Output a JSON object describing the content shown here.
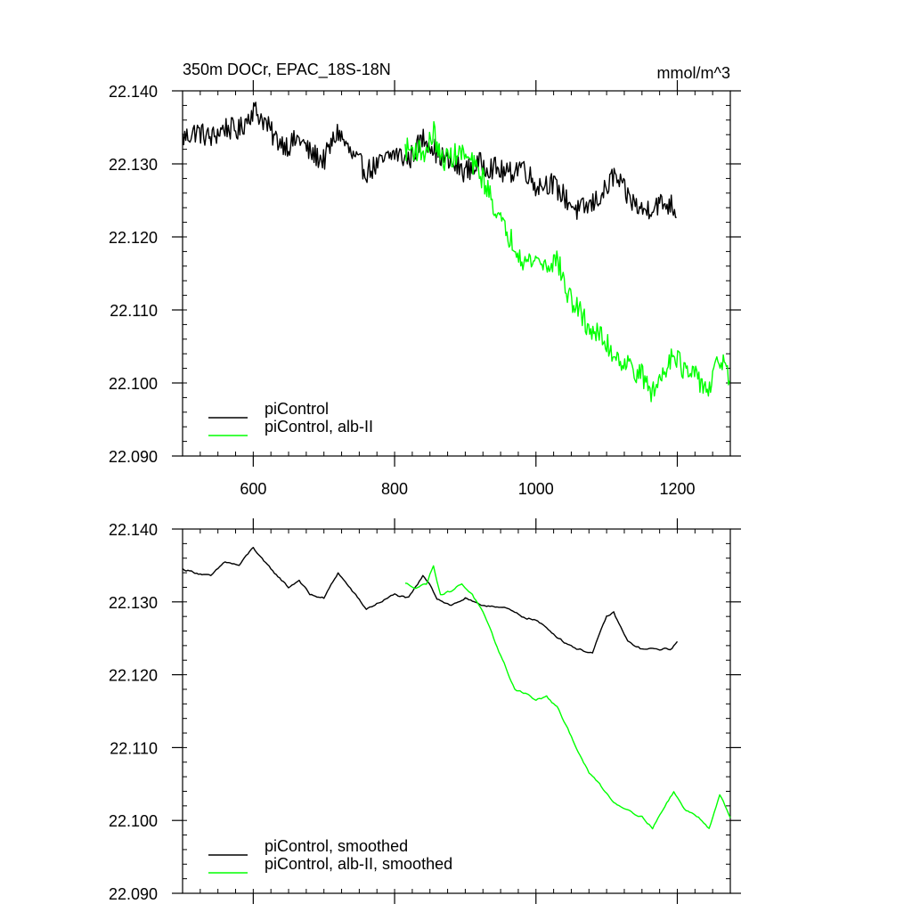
{
  "chart_data": [
    {
      "type": "line",
      "title": "350m DOCr, EPAC_18S-18N",
      "units": "mmol/m^3",
      "xlim": [
        500,
        1275
      ],
      "ylim": [
        22.09,
        22.14
      ],
      "xticks": [
        600,
        800,
        1000,
        1200
      ],
      "yticks": [
        22.09,
        22.1,
        22.11,
        22.12,
        22.13,
        22.14
      ],
      "xtick_labels": [
        "600",
        "800",
        "1000",
        "1200"
      ],
      "ytick_labels": [
        "22.090",
        "22.100",
        "22.110",
        "22.120",
        "22.130",
        "22.140"
      ],
      "legend_position": "bottom-left",
      "smoothed": false,
      "series": [
        {
          "name": "piControl",
          "color": "#000000",
          "points": [
            [
              500,
              22.1335
            ],
            [
              520,
              22.1345
            ],
            [
              540,
              22.1335
            ],
            [
              560,
              22.135
            ],
            [
              580,
              22.1345
            ],
            [
              600,
              22.1375
            ],
            [
              615,
              22.136
            ],
            [
              630,
              22.1335
            ],
            [
              650,
              22.1325
            ],
            [
              665,
              22.1335
            ],
            [
              680,
              22.1315
            ],
            [
              700,
              22.1305
            ],
            [
              720,
              22.1345
            ],
            [
              740,
              22.131
            ],
            [
              760,
              22.129
            ],
            [
              780,
              22.13
            ],
            [
              800,
              22.1315
            ],
            [
              820,
              22.1305
            ],
            [
              840,
              22.1335
            ],
            [
              850,
              22.133
            ],
            [
              860,
              22.1315
            ],
            [
              880,
              22.13
            ],
            [
              900,
              22.129
            ],
            [
              920,
              22.13
            ],
            [
              940,
              22.1295
            ],
            [
              960,
              22.1285
            ],
            [
              980,
              22.13
            ],
            [
              1000,
              22.127
            ],
            [
              1020,
              22.1275
            ],
            [
              1040,
              22.1255
            ],
            [
              1060,
              22.1235
            ],
            [
              1080,
              22.1245
            ],
            [
              1100,
              22.1265
            ],
            [
              1110,
              22.1285
            ],
            [
              1130,
              22.1255
            ],
            [
              1150,
              22.1235
            ],
            [
              1170,
              22.1245
            ],
            [
              1190,
              22.1245
            ],
            [
              1200,
              22.1235
            ]
          ]
        },
        {
          "name": "piControl, alb-II",
          "color": "#00ff00",
          "points": [
            [
              815,
              22.132
            ],
            [
              830,
              22.132
            ],
            [
              845,
              22.1315
            ],
            [
              855,
              22.1345
            ],
            [
              865,
              22.1305
            ],
            [
              880,
              22.131
            ],
            [
              895,
              22.1315
            ],
            [
              910,
              22.13
            ],
            [
              925,
              22.128
            ],
            [
              940,
              22.1245
            ],
            [
              955,
              22.121
            ],
            [
              970,
              22.119
            ],
            [
              985,
              22.1165
            ],
            [
              1000,
              22.117
            ],
            [
              1015,
              22.116
            ],
            [
              1030,
              22.117
            ],
            [
              1045,
              22.112
            ],
            [
              1060,
              22.11
            ],
            [
              1075,
              22.1075
            ],
            [
              1090,
              22.1065
            ],
            [
              1110,
              22.104
            ],
            [
              1130,
              22.1025
            ],
            [
              1150,
              22.101
            ],
            [
              1165,
              22.0985
            ],
            [
              1180,
              22.1015
            ],
            [
              1195,
              22.1045
            ],
            [
              1210,
              22.1015
            ],
            [
              1230,
              22.1005
            ],
            [
              1245,
              22.099
            ],
            [
              1260,
              22.1035
            ],
            [
              1275,
              22.1005
            ]
          ]
        }
      ]
    },
    {
      "type": "line",
      "title": "",
      "units": "",
      "xlim": [
        500,
        1275
      ],
      "ylim": [
        22.09,
        22.14
      ],
      "xticks": [
        600,
        800,
        1000,
        1200
      ],
      "yticks": [
        22.09,
        22.1,
        22.11,
        22.12,
        22.13,
        22.14
      ],
      "xtick_labels": [],
      "ytick_labels": [
        "22.090",
        "22.100",
        "22.110",
        "22.120",
        "22.130",
        "22.140"
      ],
      "legend_position": "bottom-left",
      "smoothed": true,
      "series": [
        {
          "name": "piControl, smoothed",
          "color": "#000000",
          "points": [
            [
              500,
              22.1345
            ],
            [
              520,
              22.134
            ],
            [
              540,
              22.1335
            ],
            [
              560,
              22.1355
            ],
            [
              580,
              22.135
            ],
            [
              600,
              22.1375
            ],
            [
              615,
              22.1355
            ],
            [
              630,
              22.134
            ],
            [
              650,
              22.132
            ],
            [
              665,
              22.133
            ],
            [
              680,
              22.131
            ],
            [
              700,
              22.1305
            ],
            [
              720,
              22.134
            ],
            [
              740,
              22.1315
            ],
            [
              760,
              22.129
            ],
            [
              780,
              22.13
            ],
            [
              800,
              22.131
            ],
            [
              820,
              22.1305
            ],
            [
              840,
              22.1335
            ],
            [
              850,
              22.1325
            ],
            [
              860,
              22.1305
            ],
            [
              880,
              22.1295
            ],
            [
              900,
              22.1305
            ],
            [
              920,
              22.1295
            ],
            [
              940,
              22.1295
            ],
            [
              960,
              22.129
            ],
            [
              980,
              22.128
            ],
            [
              1000,
              22.1275
            ],
            [
              1020,
              22.126
            ],
            [
              1040,
              22.1245
            ],
            [
              1060,
              22.1235
            ],
            [
              1080,
              22.123
            ],
            [
              1100,
              22.128
            ],
            [
              1110,
              22.1285
            ],
            [
              1130,
              22.1245
            ],
            [
              1150,
              22.1235
            ],
            [
              1170,
              22.1235
            ],
            [
              1190,
              22.1235
            ],
            [
              1200,
              22.1245
            ]
          ]
        },
        {
          "name": "piControl, alb-II, smoothed",
          "color": "#00ff00",
          "points": [
            [
              815,
              22.1325
            ],
            [
              830,
              22.132
            ],
            [
              845,
              22.1325
            ],
            [
              855,
              22.135
            ],
            [
              865,
              22.131
            ],
            [
              880,
              22.1315
            ],
            [
              895,
              22.1325
            ],
            [
              910,
              22.131
            ],
            [
              925,
              22.1285
            ],
            [
              940,
              22.125
            ],
            [
              955,
              22.1215
            ],
            [
              970,
              22.118
            ],
            [
              985,
              22.1175
            ],
            [
              1000,
              22.1165
            ],
            [
              1015,
              22.117
            ],
            [
              1030,
              22.1155
            ],
            [
              1045,
              22.1125
            ],
            [
              1060,
              22.1095
            ],
            [
              1075,
              22.1065
            ],
            [
              1090,
              22.105
            ],
            [
              1110,
              22.1025
            ],
            [
              1130,
              22.1015
            ],
            [
              1150,
              22.1005
            ],
            [
              1165,
              22.099
            ],
            [
              1180,
              22.1015
            ],
            [
              1195,
              22.104
            ],
            [
              1210,
              22.1015
            ],
            [
              1230,
              22.1005
            ],
            [
              1245,
              22.099
            ],
            [
              1260,
              22.1035
            ],
            [
              1275,
              22.1005
            ]
          ]
        }
      ]
    }
  ]
}
